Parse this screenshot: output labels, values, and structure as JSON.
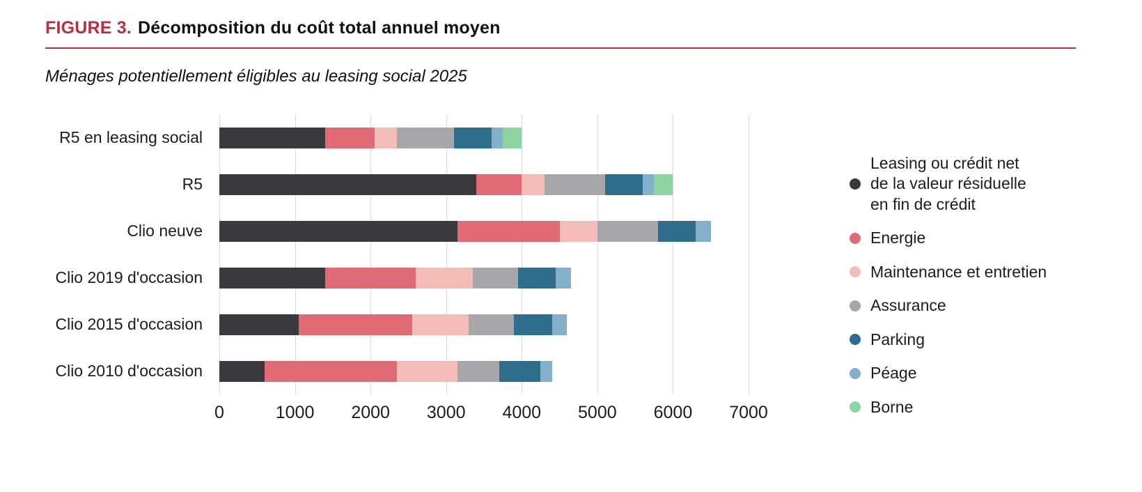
{
  "figure": {
    "label": "FIGURE 3.",
    "title": "Décomposition du coût total annuel moyen",
    "subtitle": "Ménages potentiellement éligibles au leasing social 2025"
  },
  "colors": {
    "accent_red": "#c12b3e",
    "gridline": "#d9d9d9"
  },
  "chart_data": {
    "type": "bar",
    "orientation": "horizontal",
    "stacked": true,
    "grid": true,
    "legend_position": "right",
    "xlim": [
      0,
      7000
    ],
    "x_ticks": [
      0,
      1000,
      2000,
      3000,
      4000,
      5000,
      6000,
      7000
    ],
    "categories": [
      "R5 en leasing social",
      "R5",
      "Clio neuve",
      "Clio 2019 d'occasion",
      "Clio 2015 d'occasion",
      "Clio 2010 d'occasion"
    ],
    "series": [
      {
        "key": "leasing",
        "name": "Leasing ou crédit net de la valeur résiduelle en fin de crédit",
        "legend_label": "Leasing ou crédit net\nde la valeur résiduelle\nen fin de crédit",
        "color": "#3a3a3c",
        "values": [
          1400,
          3400,
          3150,
          1400,
          1050,
          600
        ]
      },
      {
        "key": "energie",
        "name": "Energie",
        "legend_label": "Energie",
        "color": "#e06a76",
        "values": [
          650,
          600,
          1350,
          1200,
          1500,
          1750
        ]
      },
      {
        "key": "maintenance",
        "name": "Maintenance et entretien",
        "legend_label": "Maintenance et entretien",
        "color": "#f4bcb6",
        "values": [
          300,
          300,
          500,
          750,
          750,
          800
        ]
      },
      {
        "key": "assurance",
        "name": "Assurance",
        "legend_label": "Assurance",
        "color": "#a7a7a9",
        "values": [
          750,
          800,
          800,
          600,
          600,
          550
        ]
      },
      {
        "key": "parking",
        "name": "Parking",
        "legend_label": "Parking",
        "color": "#2e6d8c",
        "values": [
          500,
          500,
          500,
          500,
          500,
          550
        ]
      },
      {
        "key": "peage",
        "name": "Péage",
        "legend_label": "Péage",
        "color": "#84afc9",
        "values": [
          150,
          150,
          200,
          200,
          200,
          150
        ]
      },
      {
        "key": "borne",
        "name": "Borne",
        "legend_label": "Borne",
        "color": "#8ed3a2",
        "values": [
          250,
          250,
          0,
          0,
          0,
          0
        ]
      }
    ]
  }
}
